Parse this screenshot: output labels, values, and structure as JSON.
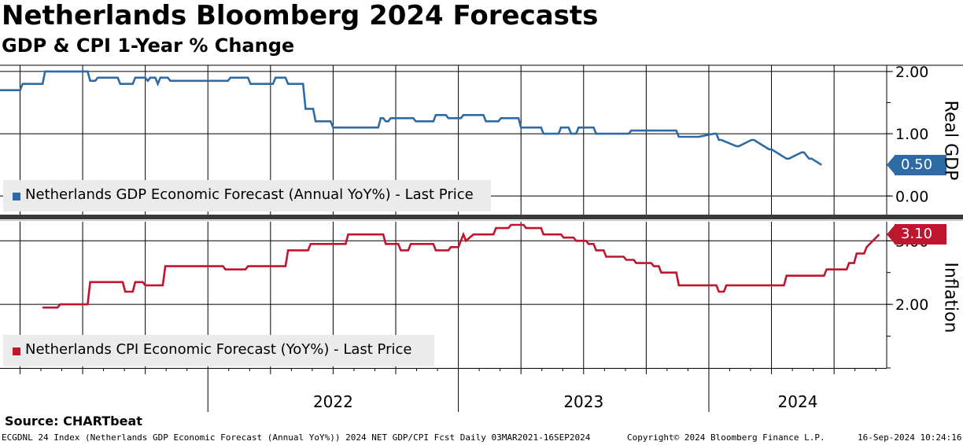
{
  "header": {
    "title": "Netherlands Bloomberg 2024 Forecasts",
    "subtitle": "GDP & CPI 1-Year % Change"
  },
  "source": "Source: CHARTbeat",
  "footer": {
    "left": "ECGDNL 24 Index (Netherlands GDP Economic Forecast (Annual YoY%)) 2024 NET GDP/CPI Fcst  Daily 03MAR2021-16SEP2024",
    "mid": "Copyright© 2024 Bloomberg Finance L.P.",
    "right": "16-Sep-2024 10:24:16"
  },
  "colors": {
    "gdp": "#2e6aa6",
    "cpi": "#c0152f",
    "legend_bg": "#ebebeb"
  },
  "chart_data": [
    {
      "type": "line",
      "title": "",
      "ylabel": "Real GDP",
      "ylim": [
        -0.3,
        2.1
      ],
      "yticks": [
        0.0,
        1.0,
        2.0
      ],
      "ytick_labels": [
        "0.00",
        "1.00",
        "2.00"
      ],
      "x_range": [
        2021.17,
        2024.71
      ],
      "x_year_labels": [
        {
          "label": "2022",
          "pos": 2022.0
        },
        {
          "label": "2023",
          "pos": 2023.0
        },
        {
          "label": "2024",
          "pos": 2024.0
        }
      ],
      "series": [
        {
          "name": "Netherlands GDP Economic Forecast (Annual YoY%) - Last Price",
          "last_value_label": "0.50",
          "x": [
            2021.17,
            2021.25,
            2021.26,
            2021.34,
            2021.35,
            2021.52,
            2021.53,
            2021.55,
            2021.56,
            2021.64,
            2021.65,
            2021.7,
            2021.71,
            2021.75,
            2021.76,
            2021.77,
            2021.79,
            2021.8,
            2021.81,
            2021.84,
            2021.85,
            2022.08,
            2022.09,
            2022.16,
            2022.17,
            2022.26,
            2022.27,
            2022.31,
            2022.32,
            2022.38,
            2022.39,
            2022.42,
            2022.43,
            2022.49,
            2022.5,
            2022.68,
            2022.69,
            2022.7,
            2022.71,
            2022.72,
            2022.73,
            2022.82,
            2022.83,
            2022.9,
            2022.91,
            2022.95,
            2022.96,
            2023.01,
            2023.02,
            2023.1,
            2023.11,
            2023.16,
            2023.17,
            2023.24,
            2023.25,
            2023.33,
            2023.34,
            2023.4,
            2023.41,
            2023.44,
            2023.45,
            2023.47,
            2023.48,
            2023.54,
            2023.55,
            2023.68,
            2023.69,
            2023.87,
            2023.88,
            2023.96,
            2024.02,
            2024.03,
            2024.04,
            2024.05,
            2024.11,
            2024.12,
            2024.17,
            2024.18,
            2024.24,
            2024.25,
            2024.31,
            2024.32,
            2024.37,
            2024.38,
            2024.4,
            2024.41,
            2024.45
          ],
          "values": [
            1.7,
            1.7,
            1.8,
            1.8,
            2.0,
            2.0,
            1.85,
            1.85,
            1.9,
            1.9,
            1.8,
            1.8,
            1.9,
            1.9,
            1.85,
            1.9,
            1.9,
            1.8,
            1.9,
            1.9,
            1.85,
            1.85,
            1.9,
            1.9,
            1.8,
            1.8,
            1.9,
            1.9,
            1.8,
            1.8,
            1.4,
            1.4,
            1.2,
            1.2,
            1.1,
            1.1,
            1.25,
            1.25,
            1.2,
            1.2,
            1.25,
            1.25,
            1.2,
            1.2,
            1.3,
            1.3,
            1.25,
            1.25,
            1.3,
            1.3,
            1.2,
            1.2,
            1.25,
            1.25,
            1.1,
            1.1,
            1.0,
            1.0,
            1.1,
            1.1,
            1.0,
            1.0,
            1.1,
            1.1,
            1.0,
            1.0,
            1.05,
            1.05,
            0.95,
            0.95,
            1.0,
            1.0,
            0.9,
            0.9,
            0.8,
            0.8,
            0.9,
            0.9,
            0.75,
            0.75,
            0.6,
            0.6,
            0.7,
            0.7,
            0.6,
            0.6,
            0.5
          ]
        }
      ]
    },
    {
      "type": "line",
      "title": "",
      "ylabel": "Inflation",
      "ylim": [
        1.0,
        3.3
      ],
      "yticks": [
        2.0,
        3.0
      ],
      "ytick_labels": [
        "2.00",
        "3.00"
      ],
      "x_range": [
        2021.17,
        2024.71
      ],
      "series": [
        {
          "name": "Netherlands CPI Economic Forecast (YoY%) - Last Price",
          "last_value_label": "3.10",
          "x": [
            2021.34,
            2021.4,
            2021.41,
            2021.52,
            2021.53,
            2021.66,
            2021.67,
            2021.7,
            2021.71,
            2021.74,
            2021.75,
            2021.82,
            2021.83,
            2022.06,
            2022.07,
            2022.15,
            2022.16,
            2022.31,
            2022.32,
            2022.4,
            2022.41,
            2022.55,
            2022.56,
            2022.7,
            2022.71,
            2022.76,
            2022.77,
            2022.8,
            2022.81,
            2022.9,
            2022.91,
            2022.96,
            2022.97,
            2023.0,
            2023.02,
            2023.03,
            2023.06,
            2023.14,
            2023.15,
            2023.2,
            2023.21,
            2023.26,
            2023.27,
            2023.33,
            2023.34,
            2023.41,
            2023.42,
            2023.46,
            2023.47,
            2023.51,
            2023.52,
            2023.54,
            2023.55,
            2023.58,
            2023.59,
            2023.66,
            2023.67,
            2023.7,
            2023.71,
            2023.77,
            2023.78,
            2023.8,
            2023.81,
            2023.87,
            2023.88,
            2024.03,
            2024.04,
            2024.06,
            2024.07,
            2024.3,
            2024.31,
            2024.46,
            2024.47,
            2024.52,
            2024.53,
            2024.55,
            2024.56,
            2024.58,
            2024.59,
            2024.62,
            2024.63,
            2024.68
          ],
          "values": [
            1.95,
            1.95,
            2.0,
            2.0,
            2.35,
            2.35,
            2.2,
            2.2,
            2.35,
            2.35,
            2.3,
            2.3,
            2.6,
            2.6,
            2.55,
            2.55,
            2.6,
            2.6,
            2.85,
            2.85,
            2.95,
            2.95,
            3.1,
            3.1,
            2.95,
            2.95,
            2.85,
            2.85,
            2.95,
            2.95,
            2.85,
            2.85,
            2.9,
            2.9,
            3.1,
            3.0,
            3.1,
            3.1,
            3.2,
            3.2,
            3.25,
            3.25,
            3.2,
            3.2,
            3.1,
            3.1,
            3.05,
            3.05,
            3.0,
            3.0,
            2.95,
            2.95,
            2.85,
            2.85,
            2.75,
            2.75,
            2.7,
            2.7,
            2.65,
            2.65,
            2.6,
            2.6,
            2.5,
            2.5,
            2.3,
            2.3,
            2.2,
            2.2,
            2.3,
            2.3,
            2.45,
            2.45,
            2.55,
            2.55,
            2.55,
            2.55,
            2.65,
            2.65,
            2.8,
            2.8,
            2.9,
            3.1
          ]
        }
      ]
    }
  ]
}
